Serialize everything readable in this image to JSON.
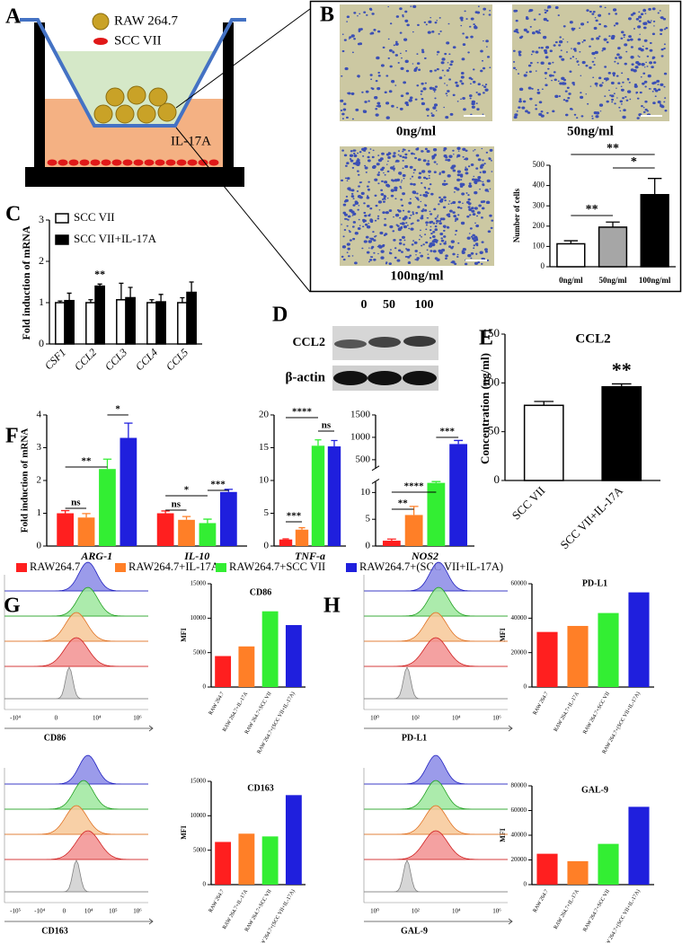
{
  "figure": {
    "A": {
      "letter": "A",
      "legend": [
        "RAW 264.7",
        "SCC VII"
      ],
      "medium": "IL-17A"
    },
    "B": {
      "letter": "B",
      "captions": [
        "0ng/ml",
        "50ng/ml",
        "100ng/ml"
      ]
    },
    "C": {
      "letter": "C"
    },
    "D": {
      "letter": "D",
      "lanes": [
        "0",
        "50",
        "100"
      ],
      "rows": [
        "CCL2",
        "β-actin"
      ]
    },
    "E": {
      "letter": "E"
    },
    "F": {
      "letter": "F"
    },
    "G": {
      "letter": "G"
    },
    "H": {
      "letter": "H"
    },
    "flow": [
      {
        "label": "CD86",
        "ticks": [
          "-10⁴",
          "0",
          "10⁴",
          "10⁶"
        ]
      },
      {
        "label": "PD-L1",
        "ticks": [
          "10⁰",
          "10²",
          "10⁴",
          "10⁶"
        ]
      },
      {
        "label": "CD163",
        "ticks": [
          "-10⁵",
          "-10⁴",
          "0",
          "10⁴",
          "10⁵",
          "10⁶"
        ]
      },
      {
        "label": "GAL-9",
        "ticks": [
          "10⁰",
          "10²",
          "10⁴",
          "10⁶"
        ]
      }
    ]
  },
  "chart_data": [
    {
      "type": "bar",
      "categories": [
        "0ng/ml",
        "50ng/ml",
        "100ng/ml"
      ],
      "ylabel": "Number of cells",
      "values": [
        113,
        195,
        355
      ],
      "errors": [
        15,
        25,
        80
      ],
      "colors": [
        "#ffffff",
        "#a6a6a6",
        "#000000"
      ],
      "ylim": [
        0,
        500
      ],
      "yticks": [
        0,
        100,
        200,
        300,
        400,
        500
      ],
      "annotations": [
        "**",
        "*",
        "**"
      ]
    },
    {
      "type": "bar",
      "categories": [
        "CSF1",
        "CCL2",
        "CCL3",
        "CCL4",
        "CCL5"
      ],
      "ylabel": "Fold induction of mRNA",
      "series": [
        {
          "name": "SCC VII",
          "color": "#ffffff",
          "values": [
            1.0,
            1.0,
            1.07,
            1.0,
            1.0
          ],
          "errors": [
            0.04,
            0.07,
            0.4,
            0.07,
            0.12
          ]
        },
        {
          "name": "SCC VII+IL-17A",
          "color": "#000000",
          "values": [
            1.05,
            1.4,
            1.12,
            1.02,
            1.25
          ],
          "errors": [
            0.18,
            0.05,
            0.25,
            0.18,
            0.25
          ]
        }
      ],
      "ylim": [
        0,
        3
      ],
      "yticks": [
        0,
        1,
        2,
        3
      ],
      "annotations": [
        "**"
      ]
    },
    {
      "type": "bar",
      "title": "CCL2",
      "categories": [
        "SCC VII",
        "SCC VII+IL-17A"
      ],
      "ylabel": "Concentration (ng/ml)",
      "values": [
        77,
        96
      ],
      "errors": [
        4,
        3
      ],
      "colors": [
        "#ffffff",
        "#000000"
      ],
      "ylim": [
        0,
        150
      ],
      "yticks": [
        0,
        50,
        100,
        150
      ],
      "annotations": [
        "**"
      ]
    },
    {
      "type": "bar",
      "categories": [
        "ARG-1",
        "IL-10"
      ],
      "ylabel": "Fold induction of mRNA",
      "series": [
        {
          "name": "RAW264.7",
          "color": "#ff1f1f",
          "values": [
            1.0,
            1.0
          ],
          "errors": [
            0.08,
            0.07
          ]
        },
        {
          "name": "RAW264.7+IL-17A",
          "color": "#ff7f27",
          "values": [
            0.87,
            0.8
          ],
          "errors": [
            0.12,
            0.1
          ]
        },
        {
          "name": "RAW264.7+SCC VII",
          "color": "#33ee33",
          "values": [
            2.35,
            0.7
          ],
          "errors": [
            0.3,
            0.12
          ]
        },
        {
          "name": "RAW264.7+(SCC VII+IL-17A)",
          "color": "#1f1fdd",
          "values": [
            3.3,
            1.65
          ],
          "errors": [
            0.45,
            0.08
          ]
        }
      ],
      "ylim": [
        0,
        4
      ],
      "yticks": [
        0,
        1,
        2,
        3,
        4
      ],
      "annotations": [
        "ns",
        "**",
        "*",
        "ns",
        "*",
        "***"
      ]
    },
    {
      "type": "bar",
      "categories": [
        "TNF-a"
      ],
      "series": [
        {
          "color": "#ff1f1f",
          "values": [
            1.0
          ],
          "errors": [
            0.1
          ]
        },
        {
          "color": "#ff7f27",
          "values": [
            2.5
          ],
          "errors": [
            0.3
          ]
        },
        {
          "color": "#33ee33",
          "values": [
            15.3
          ],
          "errors": [
            0.9
          ]
        },
        {
          "color": "#1f1fdd",
          "values": [
            15.2
          ],
          "errors": [
            0.9
          ]
        }
      ],
      "ylim": [
        0,
        20
      ],
      "yticks": [
        0,
        5,
        10,
        15,
        20
      ],
      "annotations": [
        "***",
        "****",
        "ns"
      ]
    },
    {
      "type": "bar",
      "categories": [
        "NOS2"
      ],
      "series": [
        {
          "color": "#ff1f1f",
          "values": [
            1.0
          ],
          "errors": [
            0.3
          ]
        },
        {
          "color": "#ff7f27",
          "values": [
            5.8
          ],
          "errors": [
            1.6
          ]
        },
        {
          "color": "#33ee33",
          "values": [
            11.8
          ],
          "errors": [
            0.6
          ]
        },
        {
          "color": "#1f1fdd",
          "values": [
            850
          ],
          "errors": [
            80
          ]
        }
      ],
      "ylim": [
        0,
        1500
      ],
      "y_break": [
        12,
        300
      ],
      "yticks": [
        0,
        5,
        10,
        500,
        1000,
        1500
      ],
      "annotations": [
        "**",
        "****",
        "***"
      ]
    },
    {
      "type": "bar",
      "title": "CD86",
      "ylabel": "MFI",
      "categories": [
        "RAW 264.7",
        "RAW 264.7+IL-17A",
        "RAW 264.7+SCC VII",
        "RAW 264.7+(SCC VII+IL-17A)"
      ],
      "values": [
        4500,
        5900,
        11000,
        9000
      ],
      "colors": [
        "#ff1f1f",
        "#ff7f27",
        "#33ee33",
        "#1f1fdd"
      ],
      "ylim": [
        0,
        15000
      ],
      "yticks": [
        0,
        5000,
        10000,
        15000
      ]
    },
    {
      "type": "bar",
      "title": "PD-L1",
      "ylabel": "MFI",
      "categories": [
        "RAW 264.7",
        "RAW 264.7+IL-17A",
        "RAW 264.7+SCC VII",
        "RAW 264.7+(SCC VII+IL-17A)"
      ],
      "values": [
        32000,
        35500,
        43000,
        55000
      ],
      "colors": [
        "#ff1f1f",
        "#ff7f27",
        "#33ee33",
        "#1f1fdd"
      ],
      "ylim": [
        0,
        60000
      ],
      "yticks": [
        0,
        20000,
        40000,
        60000
      ]
    },
    {
      "type": "bar",
      "title": "CD163",
      "ylabel": "MFI",
      "categories": [
        "RAW 264.7",
        "RAW 264.7+IL-17A",
        "RAW 264.7+SCC VII",
        "RAW 264.7+(SCC VII+IL-17A)"
      ],
      "values": [
        6200,
        7400,
        7000,
        13000
      ],
      "colors": [
        "#ff1f1f",
        "#ff7f27",
        "#33ee33",
        "#1f1fdd"
      ],
      "ylim": [
        0,
        15000
      ],
      "yticks": [
        0,
        5000,
        10000,
        15000
      ]
    },
    {
      "type": "bar",
      "title": "GAL-9",
      "ylabel": "MFI",
      "categories": [
        "RAW 264.7",
        "RAW 264.7+IL-17A",
        "RAW 264.7+SCC VII",
        "RAW 264.7+(SCC VII+IL-17A)"
      ],
      "values": [
        25000,
        19000,
        33000,
        63000
      ],
      "colors": [
        "#ff1f1f",
        "#ff7f27",
        "#33ee33",
        "#1f1fdd"
      ],
      "ylim": [
        0,
        80000
      ],
      "yticks": [
        0,
        20000,
        40000,
        60000,
        80000
      ]
    }
  ]
}
